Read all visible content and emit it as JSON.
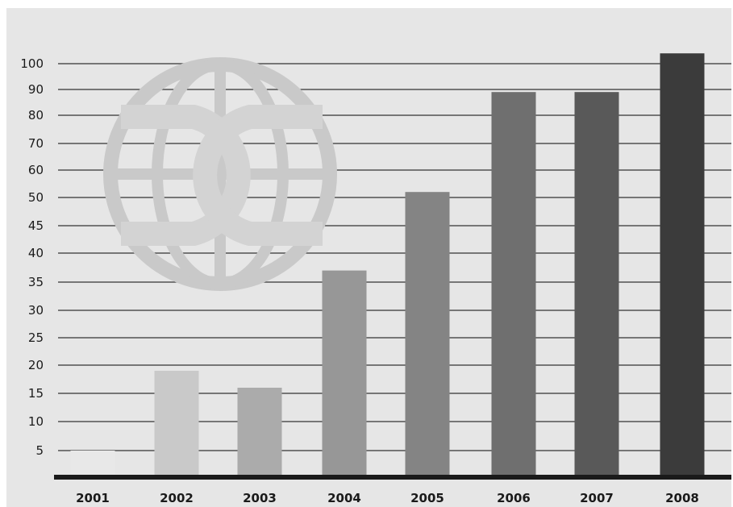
{
  "chart_data": {
    "type": "bar",
    "categories": [
      "2001",
      "2002",
      "2003",
      "2004",
      "2005",
      "2006",
      "2007",
      "2008"
    ],
    "values": [
      5,
      19,
      16,
      37,
      52,
      89,
      89,
      104
    ],
    "bar_colors": [
      "#e8e8e8",
      "#c9c9c9",
      "#ababab",
      "#979797",
      "#848484",
      "#6f6f6f",
      "#595959",
      "#3b3b3b"
    ],
    "y_tick_labels": [
      "5",
      "10",
      "15",
      "20",
      "25",
      "30",
      "35",
      "40",
      "45",
      "50",
      "60",
      "70",
      "80",
      "90",
      "100"
    ],
    "title": "",
    "xlabel": "",
    "ylabel": "",
    "grid": true,
    "background_color": "#e6e6e6",
    "watermark": "globe-logo"
  }
}
